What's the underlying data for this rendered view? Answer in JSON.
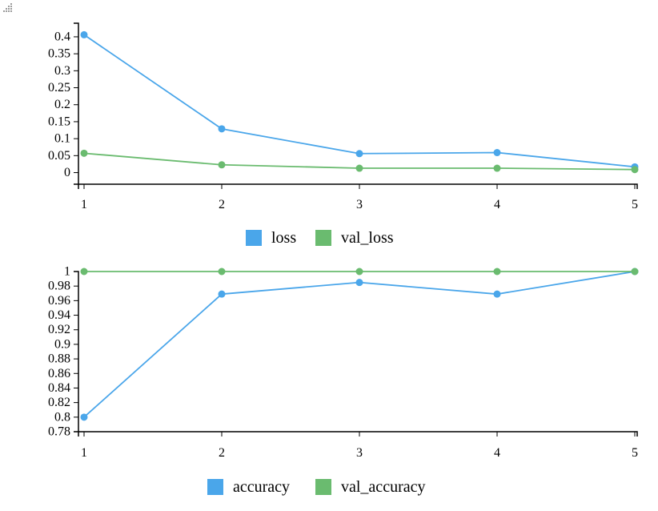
{
  "chart_data": [
    {
      "type": "line",
      "x": [
        1,
        2,
        3,
        4,
        5
      ],
      "ylim": [
        -0.02,
        0.44
      ],
      "yticks": [
        0,
        0.05,
        0.1,
        0.15,
        0.2,
        0.25,
        0.3,
        0.35,
        0.4
      ],
      "ytick_labels": [
        "0",
        "0.05",
        "0.1",
        "0.15",
        "0.2",
        "0.25",
        "0.3",
        "0.35",
        "0.4"
      ],
      "xtick_labels": [
        "1",
        "2",
        "3",
        "4",
        "5"
      ],
      "series": [
        {
          "name": "loss",
          "color": "#4aa6ea",
          "values": [
            0.406,
            0.129,
            0.056,
            0.059,
            0.017
          ]
        },
        {
          "name": "val_loss",
          "color": "#6abb6f",
          "values": [
            0.057,
            0.023,
            0.013,
            0.013,
            0.009
          ]
        }
      ],
      "legend": [
        "loss",
        "val_loss"
      ]
    },
    {
      "type": "line",
      "x": [
        1,
        2,
        3,
        4,
        5
      ],
      "ylim": [
        0.78,
        1.0
      ],
      "yticks": [
        0.78,
        0.8,
        0.82,
        0.84,
        0.86,
        0.88,
        0.9,
        0.92,
        0.94,
        0.96,
        0.98,
        1.0
      ],
      "ytick_labels": [
        "0.78",
        "0.8",
        "0.82",
        "0.84",
        "0.86",
        "0.88",
        "0.9",
        "0.92",
        "0.94",
        "0.96",
        "0.98",
        "1"
      ],
      "xtick_labels": [
        "1",
        "2",
        "3",
        "4",
        "5"
      ],
      "series": [
        {
          "name": "accuracy",
          "color": "#4aa6ea",
          "values": [
            0.8,
            0.969,
            0.985,
            0.969,
            1.0
          ]
        },
        {
          "name": "val_accuracy",
          "color": "#6abb6f",
          "values": [
            1.0,
            1.0,
            1.0,
            1.0,
            1.0
          ]
        }
      ],
      "legend": [
        "accuracy",
        "val_accuracy"
      ]
    }
  ]
}
